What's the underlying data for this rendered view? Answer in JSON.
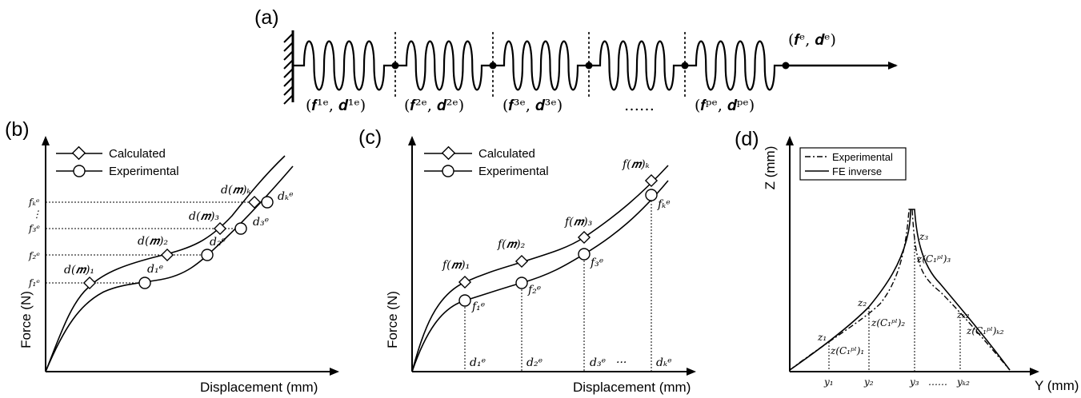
{
  "panel_a": {
    "label": "(a)",
    "end_label": "(𝒇ᵉ, 𝒅ᵉ)",
    "spring_labels": [
      "(𝒇¹ᵉ, 𝒅¹ᵉ)",
      "(𝒇²ᵉ, 𝒅²ᵉ)",
      "(𝒇³ᵉ, 𝒅³ᵉ)",
      "……",
      "(𝒇ᵖᵉ, 𝒅ᵖᵉ)"
    ]
  },
  "panel_b": {
    "label": "(b)",
    "xlabel": "Displacement (mm)",
    "ylabel": "Force (N)",
    "legend": [
      "Calculated",
      "Experimental"
    ],
    "force_ticks": [
      "f₁ᵉ",
      "f₂ᵉ",
      "f₃ᵉ",
      "⋮",
      "fₖᵉ"
    ],
    "calc_labels": [
      "d(𝒎)₁",
      "d(𝒎)₂",
      "d(𝒎)₃",
      "d(𝒎)ₖ"
    ],
    "exp_labels": [
      "d₁ᵉ",
      "d₂ᵉ",
      "d₃ᵉ",
      "dₖᵉ"
    ]
  },
  "panel_c": {
    "label": "(c)",
    "xlabel": "Displacement (mm)",
    "ylabel": "Force (N)",
    "legend": [
      "Calculated",
      "Experimental"
    ],
    "calc_labels": [
      "f(𝒎)₁",
      "f(𝒎)₂",
      "f(𝒎)₃",
      "f(𝒎)ₖ"
    ],
    "exp_labels": [
      "f₁ᵉ",
      "f₂ᵉ",
      "f₃ᵉ",
      "fₖᵉ"
    ],
    "disp_ticks": [
      "d₁ᵉ",
      "d₂ᵉ",
      "d₃ᵉ",
      "···",
      "dₖᵉ"
    ]
  },
  "panel_d": {
    "label": "(d)",
    "xlabel": "Y (mm)",
    "ylabel": "Z (mm)",
    "legend": [
      "Experimental",
      "FE inverse"
    ],
    "y_ticks": [
      "y₁",
      "y₂",
      "y₃",
      "……",
      "yₖ₂"
    ],
    "z_labels": [
      "z₁",
      "z₂",
      "z₃",
      "zₖ₂"
    ],
    "c_labels": [
      "z(C₁ᵖˡ)₁",
      "z(C₁ᵖˡ)₂",
      "z(C₁ᵖˡ)₃",
      "z(C₁ᵖˡ)ₖ₂"
    ]
  }
}
